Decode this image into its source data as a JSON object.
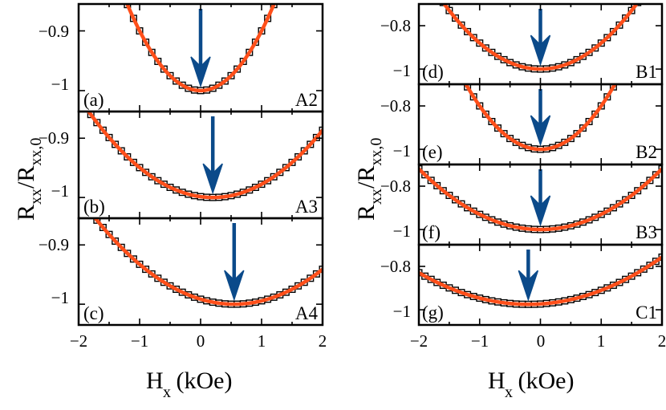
{
  "chart_data": [
    {
      "id": "left-figure",
      "type": "scatter",
      "xlabel": "H",
      "xlabel_sub": "x",
      "xlabel_unit": " (kOe)",
      "ylabel": "R",
      "ylabel_sub1": "xx",
      "ylabel_mid": "/R",
      "ylabel_sub2": "xx,0",
      "xlim": [
        -2,
        2
      ],
      "xticks": [
        -2,
        -1,
        0,
        1,
        2
      ],
      "xtick_labels": [
        "−2",
        "−1",
        "0",
        "1",
        "2"
      ],
      "panels": [
        {
          "label": "(a)",
          "sample": "A2",
          "ylim": [
            -1.035,
            -0.855
          ],
          "yticks": [
            -0.9,
            -1
          ],
          "ytick_labels": [
            "−0.9",
            "−1"
          ],
          "center": 0.0,
          "min": -1.0,
          "curvature": 0.1,
          "arrow_x": 0.0
        },
        {
          "label": "(b)",
          "sample": "A3",
          "ylim": [
            -1.035,
            -0.855
          ],
          "yticks": [
            -0.9,
            -1
          ],
          "ytick_labels": [
            "−0.9",
            "−1"
          ],
          "center": 0.2,
          "min": -1.0,
          "curvature": 0.035,
          "arrow_x": 0.2
        },
        {
          "label": "(c)",
          "sample": "A4",
          "ylim": [
            -1.035,
            -0.855
          ],
          "yticks": [
            -0.9,
            -1
          ],
          "ytick_labels": [
            "−0.9",
            "−1"
          ],
          "center": 0.55,
          "min": -1.0,
          "curvature": 0.028,
          "arrow_x": 0.55
        }
      ]
    },
    {
      "id": "right-figure",
      "type": "scatter",
      "xlabel": "H",
      "xlabel_sub": "x",
      "xlabel_unit": " (kOe)",
      "ylabel": "R",
      "ylabel_sub1": "xx",
      "ylabel_mid": "/R",
      "ylabel_sub2": "xx,0",
      "xlim": [
        -2,
        2
      ],
      "xticks": [
        -2,
        -1,
        0,
        1,
        2
      ],
      "xtick_labels": [
        "−2",
        "−1",
        "0",
        "1",
        "2"
      ],
      "panels": [
        {
          "label": "(d)",
          "sample": "B1",
          "ylim": [
            -1.07,
            -0.7
          ],
          "yticks": [
            -0.8,
            -1
          ],
          "ytick_labels": [
            "−0.8",
            "−1"
          ],
          "center": 0.0,
          "min": -1.0,
          "curvature": 0.12,
          "arrow_x": 0.0
        },
        {
          "label": "(e)",
          "sample": "B2",
          "ylim": [
            -1.07,
            -0.7
          ],
          "yticks": [
            -0.8,
            -1
          ],
          "ytick_labels": [
            "−0.8",
            "−1"
          ],
          "center": 0.0,
          "min": -1.0,
          "curvature": 0.2,
          "arrow_x": 0.0
        },
        {
          "label": "(f)",
          "sample": "B3",
          "ylim": [
            -1.07,
            -0.7
          ],
          "yticks": [
            -0.8,
            -1
          ],
          "ytick_labels": [
            "−0.8",
            "−1"
          ],
          "center": 0.0,
          "min": -1.0,
          "curvature": 0.07,
          "arrow_x": 0.0
        },
        {
          "label": "(g)",
          "sample": "C1",
          "ylim": [
            -1.07,
            -0.7
          ],
          "yticks": [
            -0.8,
            -1
          ],
          "ytick_labels": [
            "−0.8",
            "−1"
          ],
          "center": -0.2,
          "min": -0.975,
          "curvature": 0.045,
          "arrow_x": -0.2
        }
      ]
    }
  ],
  "colors": {
    "fit_line": "#ff4f1a",
    "arrow": "#0b4a8a",
    "marker": "#000000",
    "frame": "#000000"
  }
}
